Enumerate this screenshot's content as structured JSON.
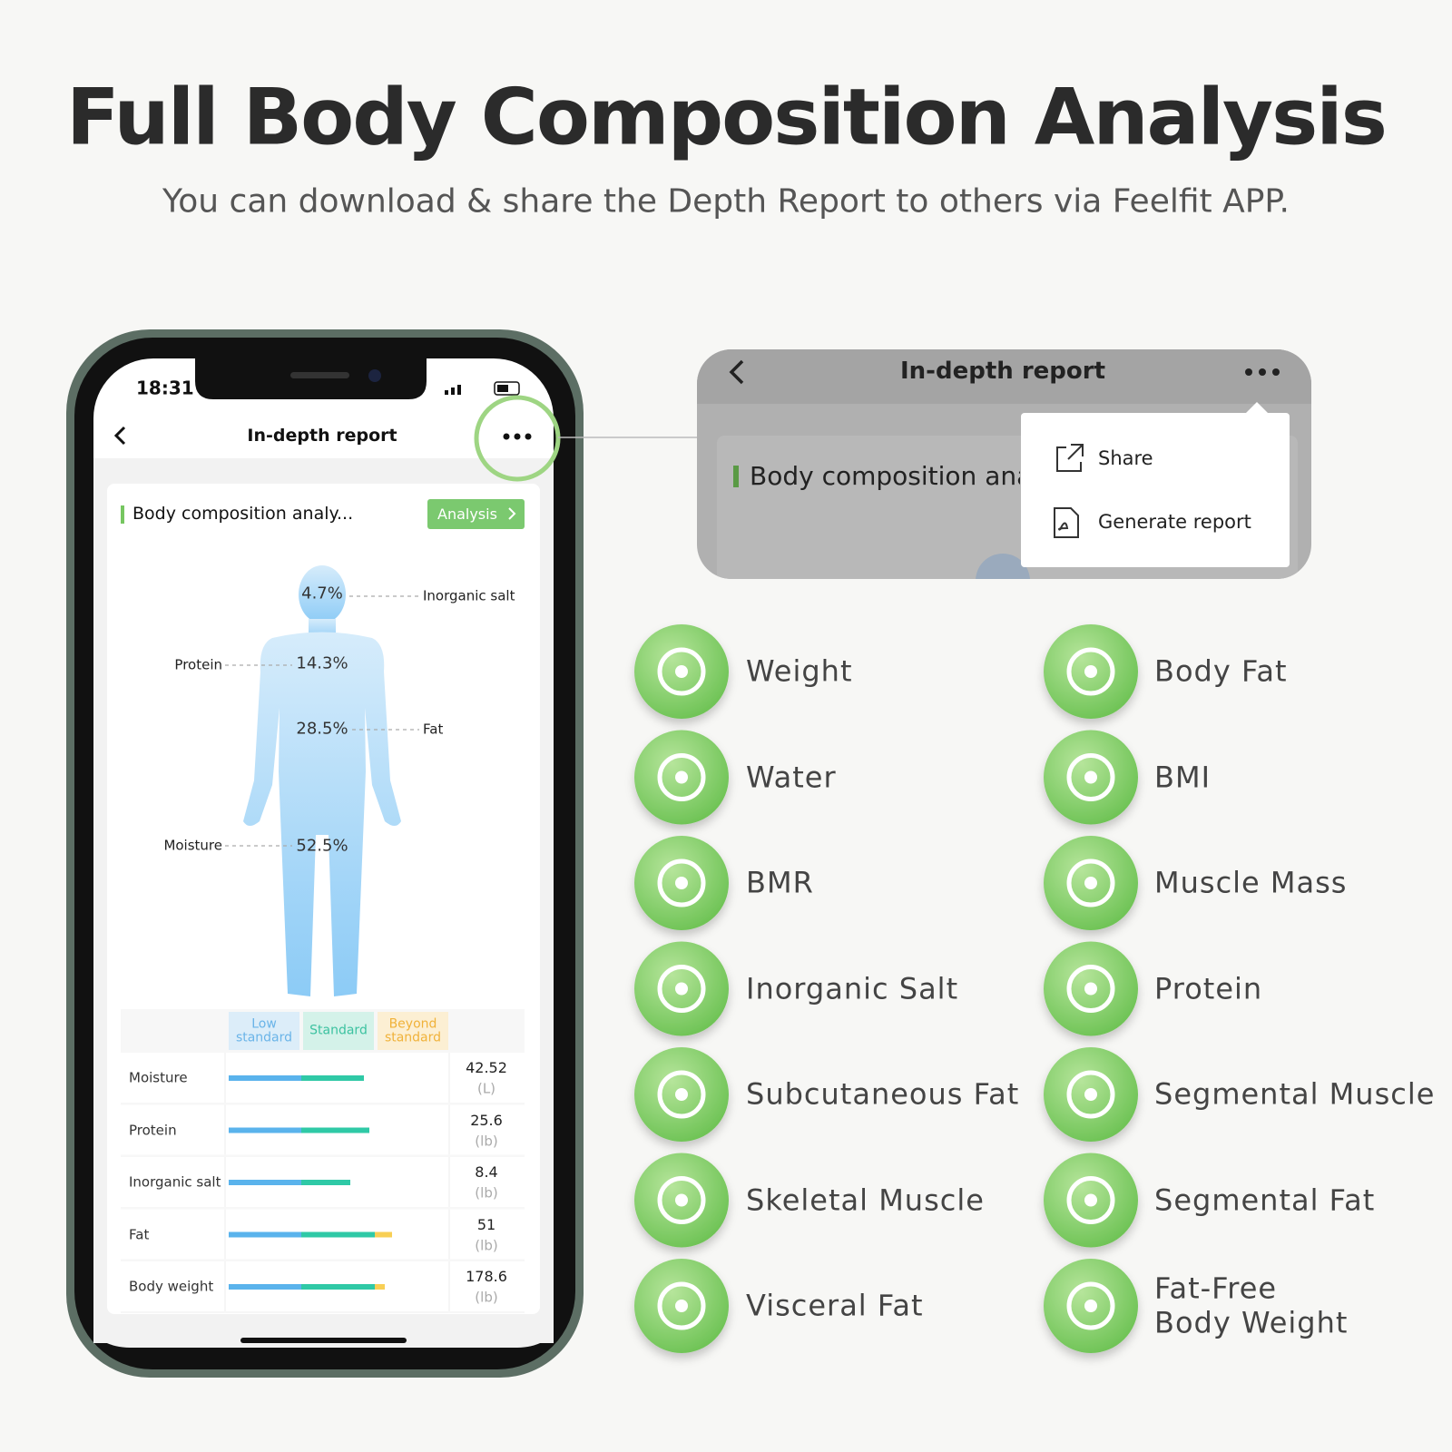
{
  "header": {
    "title": "Full Body Composition Analysis",
    "subtitle": "You can download & share the Depth Report to others via Feelfit APP."
  },
  "phone": {
    "status_time": "18:31",
    "nav_title": "In-depth report",
    "card_title": "Body composition analy...",
    "analysis_button": "Analysis",
    "body_diagram": [
      {
        "percent": "4.7%",
        "label": "Inorganic salt"
      },
      {
        "percent": "14.3%",
        "label": "Protein"
      },
      {
        "percent": "28.5%",
        "label": "Fat"
      },
      {
        "percent": "52.5%",
        "label": "Moisture"
      }
    ],
    "table": {
      "headers": [
        "Low standard",
        "Standard",
        "Beyond standard"
      ],
      "rows": [
        {
          "name": "Moisture",
          "value": "42.52",
          "unit": "(L)"
        },
        {
          "name": "Protein",
          "value": "25.6",
          "unit": "(lb)"
        },
        {
          "name": "Inorganic salt",
          "value": "8.4",
          "unit": "(lb)"
        },
        {
          "name": "Fat",
          "value": "51",
          "unit": "(lb)"
        },
        {
          "name": "Body weight",
          "value": "178.6",
          "unit": "(lb)"
        }
      ]
    }
  },
  "menu_popup": {
    "title": "In-depth report",
    "card_title": "Body composition ana",
    "items": [
      "Share",
      "Generate report"
    ]
  },
  "features": [
    "Weight",
    "Body Fat",
    "Water",
    "BMI",
    "BMR",
    "Muscle Mass",
    "Inorganic Salt",
    "Protein",
    "Subcutaneous Fat",
    "Segmental Muscle",
    "Skeletal Muscle",
    "Segmental Fat",
    "Visceral Fat",
    "Fat-Free Body Weight"
  ]
}
